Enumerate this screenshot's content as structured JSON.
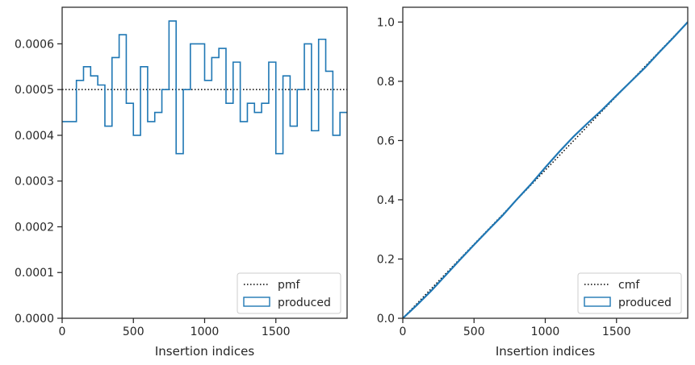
{
  "chart_data": [
    {
      "type": "step",
      "xlabel": "Insertion indices",
      "ylabel": "",
      "xlim": [
        0,
        2000
      ],
      "ylim": [
        0,
        0.00068
      ],
      "xticks": [
        0,
        500,
        1000,
        1500
      ],
      "xtick_labels": [
        "0",
        "500",
        "1000",
        "1500"
      ],
      "yticks": [
        0,
        0.0001,
        0.0002,
        0.0003,
        0.0004,
        0.0005,
        0.0006
      ],
      "ytick_labels": [
        "0.0000",
        "0.0001",
        "0.0002",
        "0.0003",
        "0.0004",
        "0.0005",
        "0.0006"
      ],
      "legend": {
        "position": "lower-right",
        "entries": [
          "pmf",
          "produced"
        ]
      },
      "series": [
        {
          "name": "pmf",
          "style": "dotted",
          "color": "#000000",
          "x": [
            0,
            2000
          ],
          "y": [
            0.0005,
            0.0005
          ]
        },
        {
          "name": "produced",
          "style": "step",
          "color": "#1f77b4",
          "bin_width": 50,
          "bin_start": 0,
          "values": [
            0.00043,
            0.00043,
            0.00052,
            0.00055,
            0.00053,
            0.00051,
            0.00042,
            0.00057,
            0.00062,
            0.00047,
            0.0004,
            0.00055,
            0.00043,
            0.00045,
            0.0005,
            0.00065,
            0.00036,
            0.0005,
            0.0006,
            0.0006,
            0.00052,
            0.00057,
            0.00059,
            0.00047,
            0.00056,
            0.00043,
            0.00047,
            0.00045,
            0.00047,
            0.00056,
            0.00036,
            0.00053,
            0.00042,
            0.0005,
            0.0006,
            0.00041,
            0.00061,
            0.00054,
            0.0004,
            0.00045
          ]
        }
      ]
    },
    {
      "type": "step",
      "xlabel": "Insertion indices",
      "ylabel": "",
      "xlim": [
        0,
        2000
      ],
      "ylim": [
        0,
        1.05
      ],
      "xticks": [
        0,
        500,
        1000,
        1500
      ],
      "xtick_labels": [
        "0",
        "500",
        "1000",
        "1500"
      ],
      "yticks": [
        0,
        0.2,
        0.4,
        0.6,
        0.8,
        1.0
      ],
      "ytick_labels": [
        "0.0",
        "0.2",
        "0.4",
        "0.6",
        "0.8",
        "1.0"
      ],
      "legend": {
        "position": "lower-right",
        "entries": [
          "cmf",
          "produced"
        ]
      },
      "series": [
        {
          "name": "cmf",
          "style": "dotted",
          "color": "#000000",
          "x": [
            0,
            2000
          ],
          "y": [
            0,
            1.0
          ]
        },
        {
          "name": "produced",
          "style": "step",
          "color": "#1f77b4",
          "x": [
            0,
            100,
            200,
            300,
            400,
            500,
            600,
            700,
            800,
            900,
            1000,
            1100,
            1200,
            1300,
            1400,
            1500,
            1600,
            1700,
            1800,
            1900,
            2000
          ],
          "y": [
            0,
            0.045,
            0.093,
            0.145,
            0.197,
            0.248,
            0.298,
            0.347,
            0.401,
            0.453,
            0.509,
            0.563,
            0.614,
            0.66,
            0.704,
            0.752,
            0.799,
            0.846,
            0.898,
            0.948,
            1.0
          ]
        }
      ]
    }
  ]
}
